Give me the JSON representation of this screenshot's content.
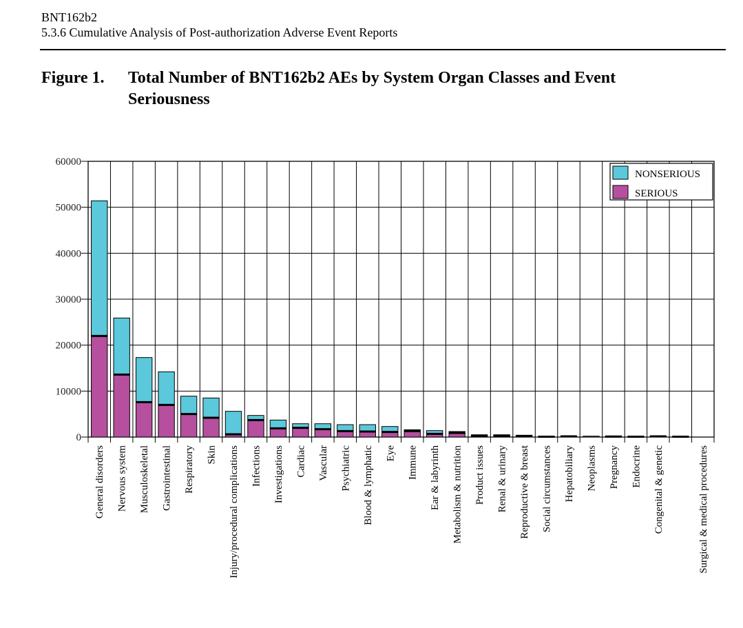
{
  "document": {
    "header_line1": "BNT162b2",
    "header_line2": "5.3.6 Cumulative Analysis of Post-authorization Adverse Event Reports",
    "figure_number": "Figure 1.",
    "figure_title": "Total Number of BNT162b2 AEs by System Organ Classes and Event Seriousness"
  },
  "colors": {
    "nonserious": "#5bc8db",
    "serious": "#b54f9e"
  },
  "chart_data": {
    "type": "bar",
    "stacked": true,
    "title": "",
    "xlabel": "",
    "ylabel": "",
    "ylim": [
      0,
      60000
    ],
    "yticks": [
      "0",
      "10000",
      "20000",
      "30000",
      "40000",
      "50000",
      "60000"
    ],
    "grid": true,
    "legend_position": "top-right",
    "categories": [
      "General disorders",
      "Nervous system",
      "Musculoskeletal",
      "Gastrointestinal",
      "Respiratory",
      "Skin",
      "Injury/procedural complications",
      "Infections",
      "Investigations",
      "Cardiac",
      "Vascular",
      "Psychiatric",
      "Blood & lymphatic",
      "Eye",
      "Immune",
      "Ear & labyrinth",
      "Metabolism & nutrition",
      "Product issues",
      "Renal & urinary",
      "Reproductive & breast",
      "Social circumstances",
      "Hepatobiliary",
      "Neoplasms",
      "Pregnancy",
      "Endocrine",
      "Congenital & genetic",
      "",
      "Surgical & medical procedures"
    ],
    "series": [
      {
        "name": "SERIOUS",
        "values": [
          22000,
          13600,
          7600,
          7000,
          5000,
          4200,
          600,
          3700,
          1900,
          2000,
          1700,
          1300,
          1200,
          1100,
          1300,
          700,
          900,
          300,
          300,
          200,
          80,
          150,
          200,
          100,
          80,
          150,
          80,
          0
        ]
      },
      {
        "name": "NONSERIOUS",
        "values": [
          29400,
          12300,
          9700,
          7200,
          3900,
          4300,
          5000,
          1000,
          1800,
          900,
          1200,
          1400,
          1500,
          1200,
          300,
          700,
          300,
          200,
          200,
          200,
          120,
          50,
          0,
          150,
          120,
          100,
          120,
          0
        ]
      }
    ]
  }
}
